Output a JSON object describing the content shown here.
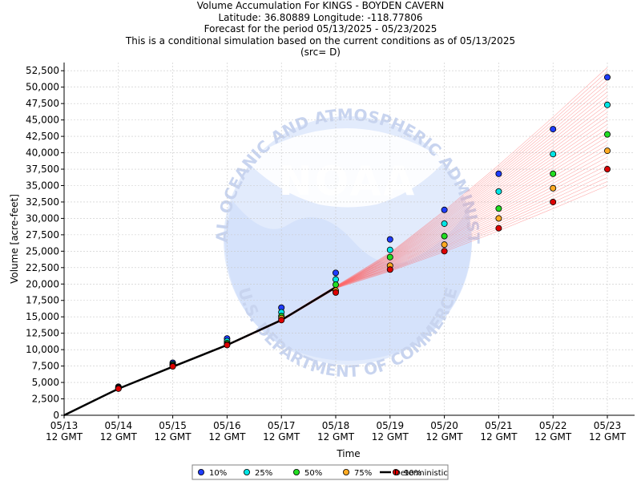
{
  "titles": {
    "line1": "Volume Accumulation For KINGS - BOYDEN CAVERN",
    "line2": "Latitude: 36.80889 Longitude: -118.77806",
    "line3": "Forecast for the period 05/13/2025 - 05/23/2025",
    "line4": "This is a conditional simulation based on the current conditions as of 05/13/2025",
    "line5": "(src= D)"
  },
  "watermark": {
    "logo_text": "NOAA",
    "arc_top": "NATIONAL OCEANIC AND ATMOSPHERIC ADMINISTRATION",
    "arc_bottom": "U.S. DEPARTMENT OF COMMERCE"
  },
  "chart_data": {
    "type": "line",
    "xlabel": "Time",
    "ylabel": "Volume [acre-feet]",
    "ylim": [
      0,
      53750
    ],
    "grid": true,
    "legend_placement": "bottom-center",
    "x_tick_labels": [
      [
        "05/13",
        "12 GMT"
      ],
      [
        "05/14",
        "12 GMT"
      ],
      [
        "05/15",
        "12 GMT"
      ],
      [
        "05/16",
        "12 GMT"
      ],
      [
        "05/17",
        "12 GMT"
      ],
      [
        "05/18",
        "12 GMT"
      ],
      [
        "05/19",
        "12 GMT"
      ],
      [
        "05/20",
        "12 GMT"
      ],
      [
        "05/21",
        "12 GMT"
      ],
      [
        "05/22",
        "12 GMT"
      ],
      [
        "05/23",
        "12 GMT"
      ]
    ],
    "y_ticks": [
      0,
      2500,
      5000,
      7500,
      10000,
      12500,
      15000,
      17500,
      20000,
      22500,
      25000,
      27500,
      30000,
      32500,
      35000,
      37500,
      40000,
      42500,
      45000,
      47500,
      50000,
      52500
    ],
    "y_tick_labels": [
      "0",
      "2,500",
      "5,000",
      "7,500",
      "10,000",
      "12,500",
      "15,000",
      "17,500",
      "20,000",
      "22,500",
      "25,000",
      "27,500",
      "30,000",
      "32,500",
      "35,000",
      "37,500",
      "40,000",
      "42,500",
      "45,000",
      "47,500",
      "50,000",
      "52,500"
    ],
    "days": [
      1,
      2,
      3,
      4,
      5,
      6,
      7,
      8,
      9,
      10
    ],
    "series": [
      {
        "name": "10%",
        "color": "#1f3cff",
        "values": [
          4350,
          8000,
          11700,
          16400,
          21700,
          26800,
          31300,
          36800,
          43600,
          51500
        ]
      },
      {
        "name": "25%",
        "color": "#00e5e5",
        "values": [
          4250,
          7800,
          11300,
          15700,
          20700,
          25200,
          29200,
          34100,
          39800,
          47300
        ]
      },
      {
        "name": "50%",
        "color": "#22dd22",
        "values": [
          4150,
          7650,
          11000,
          15100,
          19900,
          24100,
          27300,
          31500,
          36800,
          42800
        ]
      },
      {
        "name": "75%",
        "color": "#ffaa22",
        "values": [
          4100,
          7550,
          10800,
          14800,
          19000,
          22800,
          26000,
          30000,
          34600,
          40300
        ]
      },
      {
        "name": "90%",
        "color": "#dd0000",
        "values": [
          4050,
          7450,
          10700,
          14500,
          18700,
          22200,
          25000,
          28500,
          32500,
          37500
        ]
      }
    ],
    "deterministic": {
      "name": "Deterministic",
      "color": "#000000",
      "days": [
        0,
        1,
        2,
        3,
        4,
        5
      ],
      "values": [
        0,
        4050,
        7400,
        10700,
        14500,
        19500
      ]
    },
    "ensemble_traces": {
      "color": "#ff6666",
      "count": 30,
      "start_day": 5,
      "start_value": 19500,
      "end_day": 10,
      "end_min": 35000,
      "end_max": 53000
    }
  }
}
